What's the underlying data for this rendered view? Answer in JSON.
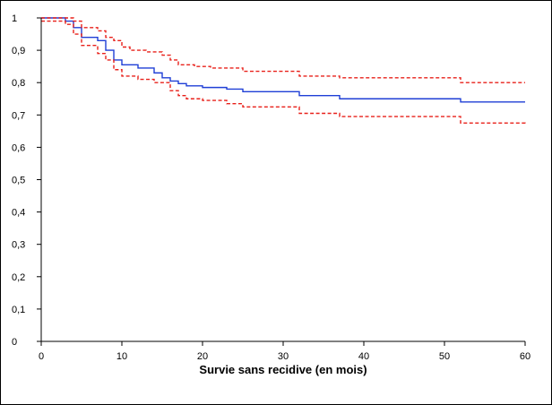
{
  "chart_data": {
    "type": "line",
    "title": "",
    "xlabel": "Survie sans recidive (en mois)",
    "ylabel": "",
    "xlim": [
      0,
      60
    ],
    "ylim": [
      0,
      1
    ],
    "grid": false,
    "x_ticks": [
      0,
      10,
      20,
      30,
      40,
      50,
      60
    ],
    "x_tick_labels": [
      "0",
      "10",
      "20",
      "30",
      "40",
      "50",
      "60"
    ],
    "y_ticks": [
      0,
      0.1,
      0.2,
      0.3,
      0.4,
      0.5,
      0.6,
      0.7,
      0.8,
      0.9,
      1
    ],
    "y_tick_labels": [
      "0",
      "0,1",
      "0,2",
      "0,3",
      "0,4",
      "0,5",
      "0,6",
      "0,7",
      "0,8",
      "0,9",
      "1"
    ],
    "colors": {
      "estimate": "#1f3fd6",
      "confidence": "#e8201a"
    },
    "series": [
      {
        "role": "estimate",
        "line_style": "solid",
        "x": [
          0,
          3,
          4,
          5,
          7,
          8,
          9,
          10,
          12,
          14,
          15,
          16,
          17,
          18,
          20,
          23,
          25,
          32,
          37,
          52,
          60
        ],
        "y": [
          1.0,
          0.99,
          0.97,
          0.94,
          0.93,
          0.9,
          0.87,
          0.855,
          0.845,
          0.83,
          0.815,
          0.805,
          0.797,
          0.79,
          0.785,
          0.78,
          0.772,
          0.76,
          0.75,
          0.74,
          0.74
        ]
      },
      {
        "role": "upper",
        "line_style": "dashed",
        "x": [
          0,
          4,
          5,
          7,
          8,
          9,
          10,
          11,
          13,
          15,
          16,
          17,
          19,
          21,
          25,
          32,
          37,
          52,
          60
        ],
        "y": [
          1.0,
          0.99,
          0.97,
          0.96,
          0.94,
          0.93,
          0.91,
          0.9,
          0.895,
          0.885,
          0.87,
          0.855,
          0.85,
          0.845,
          0.835,
          0.82,
          0.815,
          0.8,
          0.8
        ]
      },
      {
        "role": "lower",
        "line_style": "dashed",
        "x": [
          0,
          3,
          4,
          5,
          7,
          8,
          9,
          10,
          12,
          14,
          16,
          17,
          18,
          20,
          23,
          25,
          32,
          37,
          52,
          60
        ],
        "y": [
          0.99,
          0.98,
          0.95,
          0.915,
          0.89,
          0.87,
          0.84,
          0.82,
          0.81,
          0.8,
          0.775,
          0.76,
          0.75,
          0.745,
          0.735,
          0.725,
          0.705,
          0.695,
          0.675,
          0.67
        ]
      }
    ]
  }
}
